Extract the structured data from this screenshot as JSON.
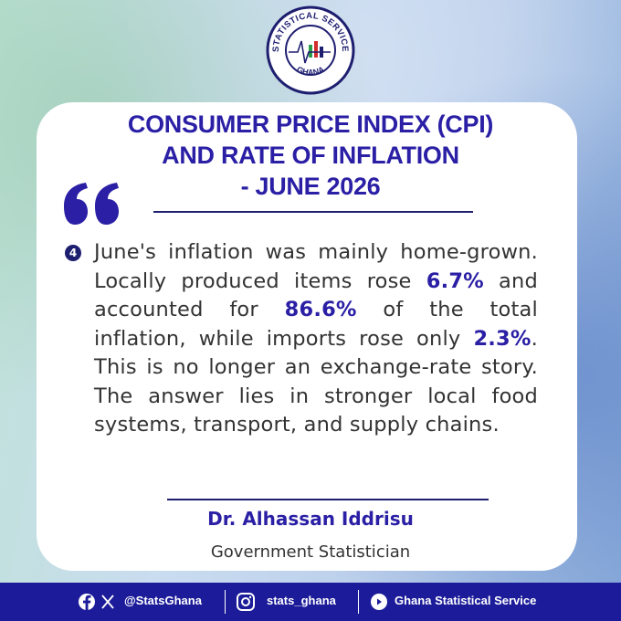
{
  "logo": {
    "top_text": "STATISTICAL SERVICE",
    "bottom_text": "GHANA"
  },
  "title": [
    "CONSUMER PRICE INDEX (CPI)",
    "AND RATE OF INFLATION",
    "- JUNE 2026"
  ],
  "item_number": "4",
  "paragraph": [
    {
      "text": "June's inflation was mainly home-grown. Locally produced items rose ",
      "highlight": false
    },
    {
      "text": "6.7%",
      "highlight": true
    },
    {
      "text": " and accounted for ",
      "highlight": false
    },
    {
      "text": "86.6%",
      "highlight": true
    },
    {
      "text": " of the total inflation, while imports rose only ",
      "highlight": false
    },
    {
      "text": "2.3%",
      "highlight": true
    },
    {
      "text": ". This is no longer an exchange-rate story. The answer lies in stronger local food systems, transport, and supply chains.",
      "highlight": false
    }
  ],
  "author": {
    "name": "Dr. Alhassan Iddrisu",
    "role": "Government Statistician"
  },
  "footer": {
    "handle_x_facebook": "@StatsGhana",
    "handle_instagram": "stats_ghana",
    "handle_youtube": "Ghana Statistical Service"
  }
}
